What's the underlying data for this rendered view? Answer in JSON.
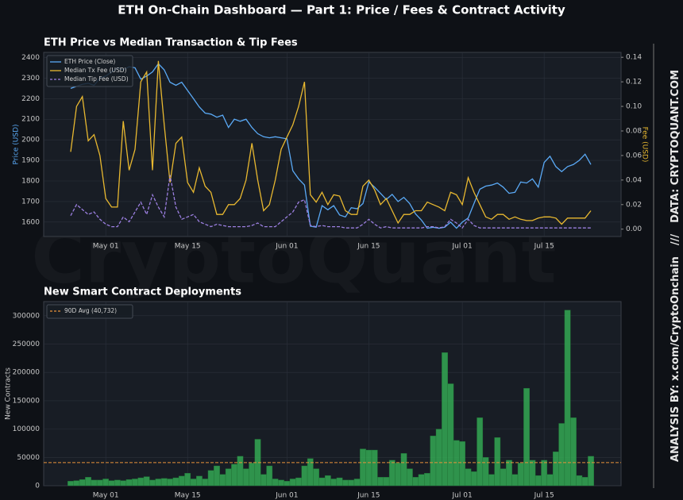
{
  "title": "ETH On-Chain Dashboard — Part 1: Price / Fees & Contract Activity",
  "watermark": "CryptoQuant",
  "credits": [
    "ANALYSIS BY: x.com/CryptoOnchain",
    "///",
    "DATA: CRYPTOQUANT.COM"
  ],
  "chart_data": [
    {
      "type": "line",
      "title": "ETH Price vs Median Transaction & Tip Fees",
      "ylabel": "Price (USD)",
      "y2label": "Fee (USD)",
      "grid": true,
      "legend": "upper left",
      "x": [
        "Apr 25",
        "Apr 26",
        "Apr 27",
        "Apr 28",
        "Apr 29",
        "Apr 30",
        "May 01",
        "May 02",
        "May 03",
        "May 04",
        "May 05",
        "May 06",
        "May 07",
        "May 08",
        "May 09",
        "May 10",
        "May 11",
        "May 12",
        "May 13",
        "May 14",
        "May 15",
        "May 16",
        "May 17",
        "May 18",
        "May 19",
        "May 20",
        "May 21",
        "May 22",
        "May 23",
        "May 24",
        "May 25",
        "May 26",
        "May 27",
        "May 28",
        "May 29",
        "May 30",
        "May 31",
        "Jun 01",
        "Jun 02",
        "Jun 03",
        "Jun 04",
        "Jun 05",
        "Jun 06",
        "Jun 07",
        "Jun 08",
        "Jun 09",
        "Jun 10",
        "Jun 11",
        "Jun 12",
        "Jun 13",
        "Jun 14",
        "Jun 15",
        "Jun 16",
        "Jun 17",
        "Jun 18",
        "Jun 19",
        "Jun 20",
        "Jun 21",
        "Jun 22",
        "Jun 23",
        "Jun 24",
        "Jun 25",
        "Jun 26",
        "Jun 27",
        "Jun 28",
        "Jun 29",
        "Jun 30",
        "Jul 01",
        "Jul 02",
        "Jul 03",
        "Jul 04",
        "Jul 05",
        "Jul 06",
        "Jul 07",
        "Jul 08",
        "Jul 09",
        "Jul 10",
        "Jul 11",
        "Jul 12",
        "Jul 13",
        "Jul 14",
        "Jul 15",
        "Jul 16",
        "Jul 17",
        "Jul 18",
        "Jul 19",
        "Jul 20",
        "Jul 21",
        "Jul 22",
        "Jul 23"
      ],
      "xticks": [
        "May 01",
        "May 15",
        "Jun 01",
        "Jun 15",
        "Jul 01",
        "Jul 15"
      ],
      "ylim": [
        1530,
        2425
      ],
      "yticks": [
        1600,
        1700,
        1800,
        1900,
        2000,
        2100,
        2200,
        2300,
        2400
      ],
      "y2lim": [
        -0.006,
        0.144
      ],
      "y2ticks": [
        {
          "value": 0,
          "label": "0.00"
        },
        {
          "value": 0.02,
          "label": "0.02"
        },
        {
          "value": 0.04,
          "label": "0.04"
        },
        {
          "value": 0.06,
          "label": "0.06"
        },
        {
          "value": 0.08,
          "label": "0.08"
        },
        {
          "value": 0.1,
          "label": "0.10"
        },
        {
          "value": 0.12,
          "label": "0.12"
        },
        {
          "value": 0.14,
          "label": "0.14"
        }
      ],
      "series": [
        {
          "name": "ETH Price (Close)",
          "color": "#5aa9f5",
          "axis": "y",
          "values": [
            2250,
            2260,
            2270,
            2275,
            2265,
            2300,
            2310,
            2330,
            2350,
            2340,
            2355,
            2350,
            2295,
            2310,
            2330,
            2370,
            2340,
            2280,
            2265,
            2280,
            2240,
            2200,
            2160,
            2130,
            2125,
            2110,
            2120,
            2060,
            2100,
            2090,
            2100,
            2060,
            2030,
            2015,
            2010,
            2015,
            2010,
            2005,
            1850,
            1810,
            1780,
            1580,
            1575,
            1680,
            1660,
            1680,
            1635,
            1625,
            1670,
            1665,
            1690,
            1795,
            1770,
            1740,
            1710,
            1735,
            1700,
            1720,
            1690,
            1640,
            1610,
            1570,
            1575,
            1570,
            1575,
            1600,
            1570,
            1600,
            1620,
            1690,
            1760,
            1775,
            1780,
            1790,
            1770,
            1740,
            1745,
            1795,
            1790,
            1810,
            1770,
            1890,
            1920,
            1870,
            1845,
            1870,
            1880,
            1900,
            1930,
            1880
          ]
        },
        {
          "name": "Median Tx Fee (USD)",
          "color": "#e8b830",
          "axis": "y2",
          "values": [
            0.063,
            0.1,
            0.108,
            0.072,
            0.077,
            0.06,
            0.025,
            0.018,
            0.018,
            0.088,
            0.048,
            0.065,
            0.12,
            0.128,
            0.048,
            0.137,
            0.085,
            0.038,
            0.07,
            0.075,
            0.038,
            0.03,
            0.05,
            0.035,
            0.03,
            0.012,
            0.012,
            0.02,
            0.02,
            0.025,
            0.04,
            0.07,
            0.04,
            0.015,
            0.02,
            0.04,
            0.065,
            0.075,
            0.085,
            0.1,
            0.12,
            0.028,
            0.022,
            0.03,
            0.02,
            0.028,
            0.027,
            0.015,
            0.012,
            0.012,
            0.035,
            0.04,
            0.032,
            0.02,
            0.025,
            0.015,
            0.005,
            0.012,
            0.012,
            0.015,
            0.015,
            0.022,
            0.02,
            0.018,
            0.015,
            0.03,
            0.028,
            0.02,
            0.042,
            0.03,
            0.02,
            0.01,
            0.008,
            0.012,
            0.012,
            0.008,
            0.01,
            0.008,
            0.007,
            0.007,
            0.009,
            0.01,
            0.01,
            0.009,
            0.004,
            0.009,
            0.009,
            0.009,
            0.009,
            0.015
          ]
        },
        {
          "name": "Median Tip Fee (USD)",
          "color": "#9b7fe0",
          "axis": "y2",
          "dashed": true,
          "values": [
            0.011,
            0.02,
            0.016,
            0.012,
            0.014,
            0.008,
            0.004,
            0.002,
            0.002,
            0.01,
            0.006,
            0.014,
            0.022,
            0.012,
            0.028,
            0.018,
            0.01,
            0.044,
            0.018,
            0.008,
            0.01,
            0.012,
            0.006,
            0.004,
            0.002,
            0.004,
            0.003,
            0.002,
            0.002,
            0.002,
            0.002,
            0.003,
            0.005,
            0.002,
            0.002,
            0.002,
            0.006,
            0.01,
            0.014,
            0.022,
            0.024,
            0.003,
            0.002,
            0.003,
            0.002,
            0.002,
            0.002,
            0.001,
            0.001,
            0.001,
            0.004,
            0.008,
            0.004,
            0.001,
            0.002,
            0.001,
            0.001,
            0.001,
            0.001,
            0.001,
            0.001,
            0.002,
            0.002,
            0.001,
            0.002,
            0.008,
            0.005,
            0.001,
            0.008,
            0.003,
            0.001,
            0.001,
            0.001,
            0.001,
            0.001,
            0.001,
            0.001,
            0.001,
            0.001,
            0.001,
            0.001,
            0.001,
            0.001,
            0.001,
            0.001,
            0.001,
            0.001,
            0.001,
            0.001,
            0.001
          ]
        }
      ]
    },
    {
      "type": "bar",
      "title": "New Smart Contract Deployments",
      "ylabel": "New Contracts",
      "grid": true,
      "legend": "upper left",
      "color": "#34a853",
      "x": [
        "Apr 25",
        "Apr 26",
        "Apr 27",
        "Apr 28",
        "Apr 29",
        "Apr 30",
        "May 01",
        "May 02",
        "May 03",
        "May 04",
        "May 05",
        "May 06",
        "May 07",
        "May 08",
        "May 09",
        "May 10",
        "May 11",
        "May 12",
        "May 13",
        "May 14",
        "May 15",
        "May 16",
        "May 17",
        "May 18",
        "May 19",
        "May 20",
        "May 21",
        "May 22",
        "May 23",
        "May 24",
        "May 25",
        "May 26",
        "May 27",
        "May 28",
        "May 29",
        "May 30",
        "May 31",
        "Jun 01",
        "Jun 02",
        "Jun 03",
        "Jun 04",
        "Jun 05",
        "Jun 06",
        "Jun 07",
        "Jun 08",
        "Jun 09",
        "Jun 10",
        "Jun 11",
        "Jun 12",
        "Jun 13",
        "Jun 14",
        "Jun 15",
        "Jun 16",
        "Jun 17",
        "Jun 18",
        "Jun 19",
        "Jun 20",
        "Jun 21",
        "Jun 22",
        "Jun 23",
        "Jun 24",
        "Jun 25",
        "Jun 26",
        "Jun 27",
        "Jun 28",
        "Jun 29",
        "Jun 30",
        "Jul 01",
        "Jul 02",
        "Jul 03",
        "Jul 04",
        "Jul 05",
        "Jul 06",
        "Jul 07",
        "Jul 08",
        "Jul 09",
        "Jul 10",
        "Jul 11",
        "Jul 12",
        "Jul 13",
        "Jul 14",
        "Jul 15",
        "Jul 16",
        "Jul 17",
        "Jul 18",
        "Jul 19",
        "Jul 20",
        "Jul 21",
        "Jul 22",
        "Jul 23"
      ],
      "xticks": [
        "May 01",
        "May 15",
        "Jun 01",
        "Jun 15",
        "Jul 01",
        "Jul 15"
      ],
      "ylim": [
        0,
        325000
      ],
      "yticks": [
        0,
        50000,
        100000,
        150000,
        200000,
        250000,
        300000
      ],
      "values": [
        8000,
        9000,
        11000,
        15000,
        10000,
        10000,
        12000,
        9000,
        10000,
        9000,
        11000,
        12000,
        14000,
        16000,
        10000,
        12000,
        13000,
        12000,
        14000,
        17000,
        22000,
        12000,
        17000,
        12000,
        27000,
        35000,
        20000,
        30000,
        38000,
        52000,
        30000,
        40000,
        82000,
        20000,
        35000,
        12000,
        10000,
        8000,
        12000,
        14000,
        35000,
        48000,
        30000,
        14000,
        18000,
        12000,
        14000,
        10000,
        10000,
        12000,
        65000,
        63000,
        63000,
        15000,
        15000,
        45000,
        40000,
        57000,
        30000,
        15000,
        20000,
        22000,
        88000,
        100000,
        235000,
        180000,
        80000,
        78000,
        30000,
        25000,
        120000,
        50000,
        20000,
        85000,
        30000,
        45000,
        20000,
        40000,
        172000,
        45000,
        18000,
        45000,
        20000,
        60000,
        110000,
        310000,
        120000,
        18000,
        15000,
        52000
      ],
      "reference": {
        "name": "90D Avg (40,732)",
        "value": 40732,
        "color": "#e8923a"
      }
    }
  ]
}
